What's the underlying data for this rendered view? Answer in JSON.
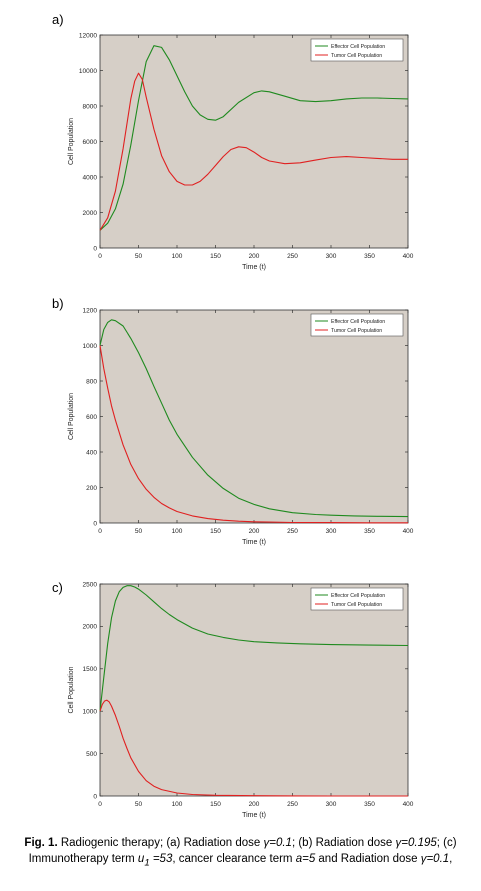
{
  "colors": {
    "plot_bg": "#d6cfc7",
    "effector": "#1f8a1f",
    "tumor": "#e02020",
    "axis": "#333333"
  },
  "panels": [
    {
      "label": "a)"
    },
    {
      "label": "b)"
    },
    {
      "label": "c)"
    }
  ],
  "chart_data": [
    {
      "type": "line",
      "xlabel": "Time (t)",
      "ylabel": "Cell Population",
      "xlim": [
        0,
        400
      ],
      "ylim": [
        0,
        12000
      ],
      "xticks": [
        0,
        50,
        100,
        150,
        200,
        250,
        300,
        350,
        400
      ],
      "yticks": [
        0,
        2000,
        4000,
        6000,
        8000,
        10000,
        12000
      ],
      "grid": false,
      "legend": "top-right",
      "series": [
        {
          "name": "Effector Cell Population",
          "color": "#1f8a1f",
          "x": [
            0,
            10,
            20,
            30,
            40,
            50,
            60,
            70,
            80,
            90,
            100,
            110,
            120,
            130,
            140,
            150,
            160,
            180,
            200,
            210,
            220,
            240,
            260,
            280,
            300,
            320,
            340,
            360,
            380,
            400
          ],
          "y": [
            1000,
            1400,
            2200,
            3600,
            5800,
            8300,
            10500,
            11400,
            11300,
            10600,
            9700,
            8800,
            8000,
            7500,
            7250,
            7200,
            7400,
            8200,
            8750,
            8850,
            8800,
            8550,
            8300,
            8250,
            8300,
            8400,
            8450,
            8450,
            8420,
            8400
          ]
        },
        {
          "name": "Tumor Cell Population",
          "color": "#e02020",
          "x": [
            0,
            10,
            20,
            30,
            40,
            45,
            50,
            55,
            60,
            70,
            80,
            90,
            100,
            110,
            120,
            130,
            140,
            150,
            160,
            170,
            180,
            190,
            200,
            210,
            220,
            240,
            260,
            280,
            300,
            320,
            340,
            360,
            380,
            400
          ],
          "y": [
            1000,
            1700,
            3200,
            5600,
            8400,
            9400,
            9850,
            9500,
            8500,
            6700,
            5200,
            4300,
            3750,
            3550,
            3550,
            3750,
            4150,
            4650,
            5150,
            5550,
            5700,
            5650,
            5400,
            5100,
            4900,
            4750,
            4800,
            4950,
            5100,
            5150,
            5100,
            5050,
            5000,
            5000
          ]
        }
      ]
    },
    {
      "type": "line",
      "xlabel": "Time (t)",
      "ylabel": "Cell Population",
      "xlim": [
        0,
        400
      ],
      "ylim": [
        0,
        1200
      ],
      "xticks": [
        0,
        50,
        100,
        150,
        200,
        250,
        300,
        350,
        400
      ],
      "yticks": [
        0,
        200,
        400,
        600,
        800,
        1000,
        1200
      ],
      "grid": false,
      "legend": "top-right",
      "series": [
        {
          "name": "Effector Cell Population",
          "color": "#1f8a1f",
          "x": [
            0,
            5,
            10,
            15,
            20,
            30,
            40,
            50,
            60,
            70,
            80,
            90,
            100,
            120,
            140,
            160,
            180,
            200,
            220,
            250,
            280,
            300,
            330,
            360,
            400
          ],
          "y": [
            1000,
            1090,
            1130,
            1145,
            1140,
            1110,
            1040,
            960,
            870,
            770,
            675,
            580,
            500,
            370,
            270,
            195,
            140,
            105,
            80,
            58,
            48,
            44,
            40,
            38,
            36
          ]
        },
        {
          "name": "Tumor Cell Population",
          "color": "#e02020",
          "x": [
            0,
            5,
            10,
            15,
            20,
            30,
            40,
            50,
            60,
            70,
            80,
            90,
            100,
            120,
            140,
            160,
            180,
            200,
            220,
            250,
            300,
            350,
            400
          ],
          "y": [
            1000,
            870,
            760,
            660,
            580,
            440,
            330,
            250,
            190,
            145,
            110,
            85,
            65,
            40,
            25,
            16,
            10,
            7,
            5,
            3,
            2,
            1,
            1
          ]
        }
      ]
    },
    {
      "type": "line",
      "xlabel": "Time (t)",
      "ylabel": "Cell Population",
      "xlim": [
        0,
        400
      ],
      "ylim": [
        0,
        2500
      ],
      "xticks": [
        0,
        50,
        100,
        150,
        200,
        250,
        300,
        350,
        400
      ],
      "yticks": [
        0,
        500,
        1000,
        1500,
        2000,
        2500
      ],
      "grid": false,
      "legend": "top-right",
      "series": [
        {
          "name": "Effector Cell Population",
          "color": "#1f8a1f",
          "x": [
            0,
            5,
            10,
            15,
            20,
            25,
            30,
            35,
            40,
            45,
            50,
            60,
            70,
            80,
            90,
            100,
            120,
            140,
            160,
            180,
            200,
            230,
            260,
            300,
            350,
            400
          ],
          "y": [
            1000,
            1400,
            1800,
            2100,
            2300,
            2410,
            2460,
            2480,
            2480,
            2465,
            2440,
            2370,
            2290,
            2210,
            2140,
            2080,
            1980,
            1910,
            1870,
            1840,
            1820,
            1805,
            1795,
            1785,
            1780,
            1775
          ]
        },
        {
          "name": "Tumor Cell Population",
          "color": "#e02020",
          "x": [
            0,
            3,
            6,
            9,
            12,
            15,
            20,
            25,
            30,
            35,
            40,
            50,
            60,
            70,
            80,
            100,
            120,
            150,
            200,
            250,
            300,
            400
          ],
          "y": [
            1000,
            1080,
            1120,
            1130,
            1110,
            1060,
            950,
            820,
            680,
            560,
            450,
            290,
            180,
            115,
            75,
            35,
            18,
            8,
            3,
            1,
            0,
            0
          ]
        }
      ]
    }
  ],
  "caption": {
    "fig_label": "Fig. 1.",
    "text_1": " Radiogenic therapy; (a) Radiation dose ",
    "gamma_a": "γ=0.1",
    "text_2": "; (b) Radiation dose ",
    "gamma_b": "γ=0.195",
    "text_3": "; (c) Immunotherapy term ",
    "u_term": "u",
    "u_sub": "1",
    "u_val": " =53",
    "text_4": ", cancer clearance term ",
    "a_term": "a=5",
    "text_5": " and Radiation dose ",
    "gamma_c": "γ=0.1",
    "text_6": ","
  }
}
